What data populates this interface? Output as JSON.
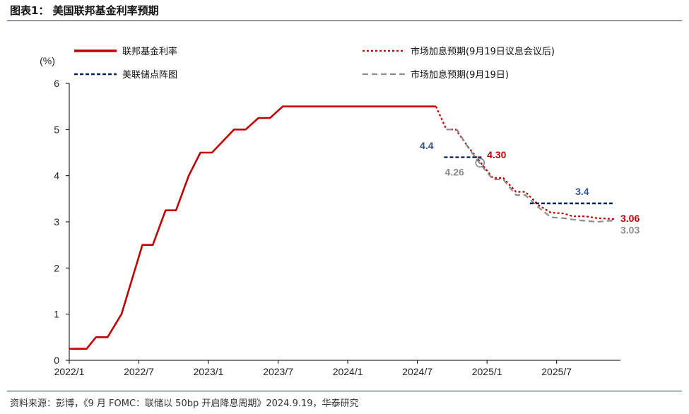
{
  "figure": {
    "title": "图表1：  美国联邦基金利率预期",
    "source": "资料来源：彭博，《9 月 FOMC：联储以 50bp 开启降息周期》2024.9.19，华泰研究"
  },
  "chart_data": {
    "type": "line",
    "y_unit": "(%)",
    "ylim": [
      0,
      6
    ],
    "y_ticks": [
      "0",
      "1",
      "2",
      "3",
      "4",
      "5",
      "6"
    ],
    "x_ticks": [
      "2022/1",
      "2022/7",
      "2023/1",
      "2023/7",
      "2024/1",
      "2024/7",
      "2025/1",
      "2025/7"
    ],
    "x_tick_months": [
      0,
      6,
      12,
      18,
      24,
      30,
      36,
      42
    ],
    "xlim_months": [
      0,
      47.5
    ],
    "grid": false,
    "legend_position": "top",
    "colors": {
      "fed_funds": "#c00000",
      "market_post": "#c00000",
      "dot_plot": "#002060",
      "market_pre": "#8c8c8c",
      "label_dot": "#2f5597",
      "label_market_post": "#c00000",
      "label_market_pre": "#8c8c8c"
    },
    "series": [
      {
        "key": "fed_funds",
        "name": "联邦基金利率",
        "style": "solid",
        "points": [
          [
            0,
            0.25
          ],
          [
            1.5,
            0.25
          ],
          [
            2.3,
            0.5
          ],
          [
            3.3,
            0.5
          ],
          [
            4.5,
            1.0
          ],
          [
            6.3,
            2.5
          ],
          [
            7.2,
            2.5
          ],
          [
            8.3,
            3.25
          ],
          [
            9.2,
            3.25
          ],
          [
            10.3,
            4.0
          ],
          [
            11.3,
            4.5
          ],
          [
            12.3,
            4.5
          ],
          [
            14.2,
            5.0
          ],
          [
            15.2,
            5.0
          ],
          [
            16.3,
            5.25
          ],
          [
            17.3,
            5.25
          ],
          [
            18.4,
            5.5
          ],
          [
            31.6,
            5.5
          ]
        ]
      },
      {
        "key": "market_post",
        "name": "市场加息预期(9月19日议息会议后)",
        "style": "dotted",
        "points": [
          [
            31.6,
            5.5
          ],
          [
            32.5,
            5.0
          ],
          [
            33.3,
            5.0
          ],
          [
            34.3,
            4.65
          ],
          [
            35.4,
            4.3
          ],
          [
            36.5,
            3.95
          ],
          [
            37.4,
            3.95
          ],
          [
            38.5,
            3.65
          ],
          [
            39.3,
            3.65
          ],
          [
            40.5,
            3.35
          ],
          [
            41.5,
            3.2
          ],
          [
            42.6,
            3.18
          ],
          [
            43.4,
            3.12
          ],
          [
            44.5,
            3.12
          ],
          [
            45.5,
            3.08
          ],
          [
            47.0,
            3.06
          ]
        ]
      },
      {
        "key": "market_pre",
        "name": "市场加息预期(9月19日)",
        "style": "dashed",
        "points": [
          [
            32.5,
            5.0
          ],
          [
            33.4,
            5.0
          ],
          [
            34.4,
            4.6
          ],
          [
            35.4,
            4.26
          ],
          [
            36.5,
            3.92
          ],
          [
            37.4,
            3.92
          ],
          [
            38.5,
            3.58
          ],
          [
            39.3,
            3.58
          ],
          [
            40.5,
            3.3
          ],
          [
            41.5,
            3.1
          ],
          [
            42.6,
            3.08
          ],
          [
            43.4,
            3.05
          ],
          [
            44.5,
            3.02
          ],
          [
            45.5,
            3.0
          ],
          [
            47.0,
            3.03
          ]
        ]
      },
      {
        "key": "dot_plot",
        "name": "美联储点阵图",
        "style": "dashed",
        "segments": [
          {
            "x": [
              32.3,
              35.6
            ],
            "y": 4.4
          },
          {
            "x": [
              39.7,
              47.0
            ],
            "y": 3.4
          }
        ]
      }
    ],
    "annotations": [
      {
        "text": "4.4",
        "x": 30.8,
        "y": 4.58,
        "color_key": "label_dot",
        "anchor": "middle"
      },
      {
        "text": "4.30",
        "x": 36.0,
        "y": 4.38,
        "color_key": "label_market_post",
        "anchor": "start"
      },
      {
        "text": "4.26",
        "x": 33.2,
        "y": 4.0,
        "color_key": "label_market_pre",
        "anchor": "middle"
      },
      {
        "text": "3.4",
        "x": 44.2,
        "y": 3.58,
        "color_key": "label_dot",
        "anchor": "middle"
      },
      {
        "text": "3.06",
        "x": 47.5,
        "y": 3.0,
        "color_key": "label_market_post",
        "anchor": "start"
      },
      {
        "text": "3.03",
        "x": 47.5,
        "y": 2.75,
        "color_key": "label_market_pre",
        "anchor": "start"
      }
    ],
    "highlight_point": {
      "x": 35.4,
      "y": 4.28
    }
  }
}
